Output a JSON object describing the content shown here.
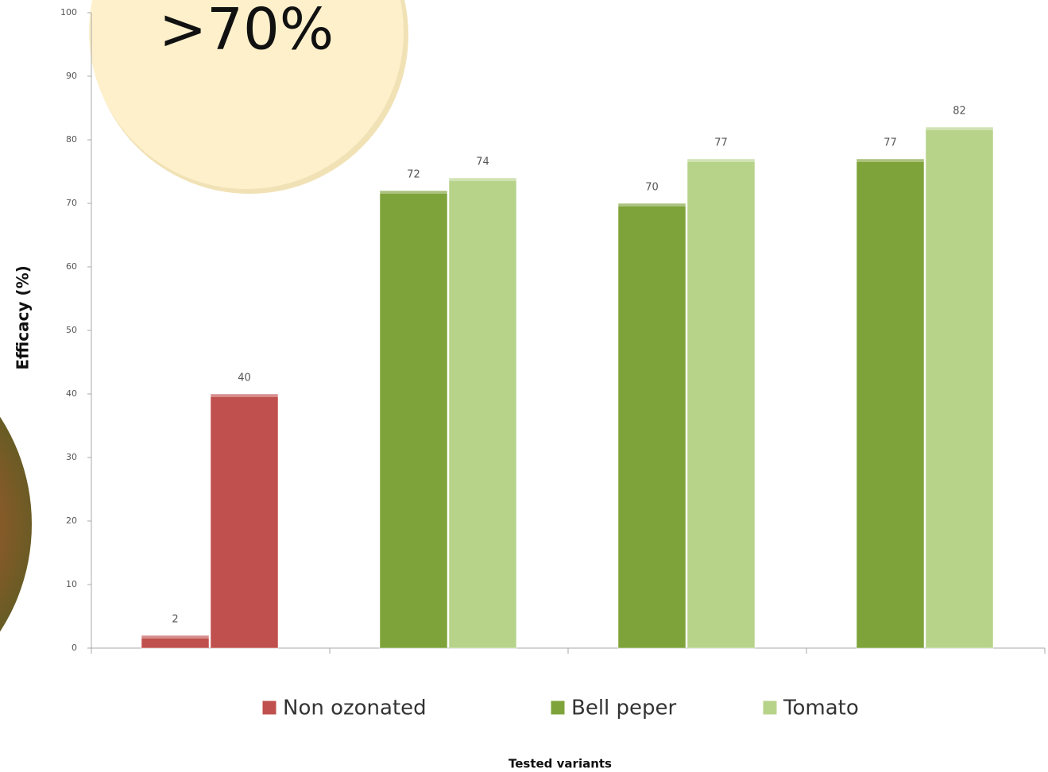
{
  "chart_data": {
    "type": "bar",
    "annotation": ">70%",
    "y_label": "Efficacy (%)",
    "x_label": "Tested variants",
    "categories": [
      null,
      null,
      null,
      null
    ],
    "series": [
      {
        "name": "Non ozonated",
        "color": "#c0504d",
        "values": [
          [
            2,
            40
          ],
          null,
          null,
          null
        ]
      },
      {
        "name": "Bell peper",
        "color": "#7ea33a",
        "values": [
          null,
          72,
          70,
          77
        ]
      },
      {
        "name": "Tomato",
        "color": "#b7d38a",
        "values": [
          null,
          74,
          77,
          82
        ]
      }
    ],
    "ylim": [
      0,
      100
    ],
    "yticks": [
      0,
      10,
      20,
      30,
      40,
      50,
      60,
      70,
      80,
      90,
      100
    ],
    "legend": "bottom"
  }
}
